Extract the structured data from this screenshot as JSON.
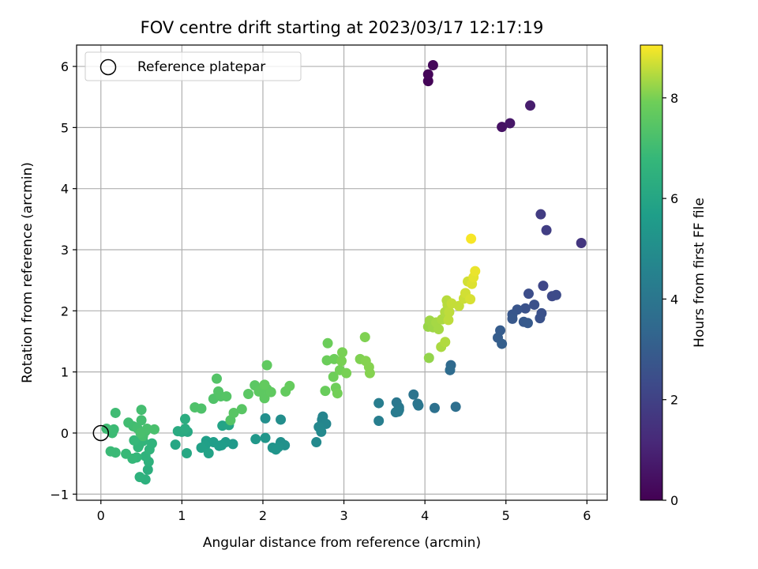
{
  "chart_data": {
    "type": "scatter",
    "title": "FOV centre drift starting at 2023/03/17 12:17:19",
    "xlabel": "Angular distance from reference (arcmin)",
    "ylabel": "Rotation from reference (arcmin)",
    "xlim": [
      -0.3,
      6.25
    ],
    "ylim": [
      -1.1,
      6.35
    ],
    "xticks": [
      0,
      1,
      2,
      3,
      4,
      5,
      6
    ],
    "yticks": [
      -1,
      0,
      1,
      2,
      3,
      4,
      5,
      6
    ],
    "grid": true,
    "legend": {
      "placement": "upper-left",
      "entries": [
        "Reference platepar"
      ]
    },
    "reference_point": {
      "x": 0,
      "y": 0
    },
    "colorbar": {
      "label": "Hours from first FF file",
      "colormap": "viridis",
      "range": [
        0,
        9.05
      ],
      "ticks": [
        0,
        2,
        4,
        6,
        8
      ]
    },
    "points": [
      {
        "x": 4.04,
        "y": 5.76,
        "c": 0.1
      },
      {
        "x": 4.04,
        "y": 5.87,
        "c": 0.15
      },
      {
        "x": 4.1,
        "y": 6.02,
        "c": 0.2
      },
      {
        "x": 4.95,
        "y": 5.01,
        "c": 0.5
      },
      {
        "x": 5.05,
        "y": 5.07,
        "c": 0.6
      },
      {
        "x": 5.3,
        "y": 5.36,
        "c": 0.8
      },
      {
        "x": 5.93,
        "y": 3.11,
        "c": 1.6
      },
      {
        "x": 5.43,
        "y": 3.58,
        "c": 1.8
      },
      {
        "x": 5.5,
        "y": 3.32,
        "c": 1.9
      },
      {
        "x": 5.46,
        "y": 2.41,
        "c": 2.2
      },
      {
        "x": 5.57,
        "y": 2.24,
        "c": 2.3
      },
      {
        "x": 5.62,
        "y": 2.26,
        "c": 2.35
      },
      {
        "x": 5.28,
        "y": 2.28,
        "c": 2.4
      },
      {
        "x": 5.35,
        "y": 2.1,
        "c": 2.5
      },
      {
        "x": 5.44,
        "y": 1.96,
        "c": 2.55
      },
      {
        "x": 5.42,
        "y": 1.88,
        "c": 2.6
      },
      {
        "x": 5.24,
        "y": 2.04,
        "c": 2.6
      },
      {
        "x": 5.14,
        "y": 2.02,
        "c": 2.7
      },
      {
        "x": 5.08,
        "y": 1.94,
        "c": 2.75
      },
      {
        "x": 5.08,
        "y": 1.87,
        "c": 2.8
      },
      {
        "x": 5.22,
        "y": 1.82,
        "c": 2.85
      },
      {
        "x": 5.27,
        "y": 1.8,
        "c": 2.9
      },
      {
        "x": 4.93,
        "y": 1.68,
        "c": 2.95
      },
      {
        "x": 4.9,
        "y": 1.56,
        "c": 3.0
      },
      {
        "x": 4.95,
        "y": 1.46,
        "c": 3.05
      },
      {
        "x": 4.32,
        "y": 1.11,
        "c": 3.5
      },
      {
        "x": 4.31,
        "y": 1.03,
        "c": 3.55
      },
      {
        "x": 4.38,
        "y": 0.43,
        "c": 3.7
      },
      {
        "x": 4.12,
        "y": 0.41,
        "c": 3.8
      },
      {
        "x": 3.86,
        "y": 0.63,
        "c": 3.9
      },
      {
        "x": 3.91,
        "y": 0.48,
        "c": 3.95
      },
      {
        "x": 3.92,
        "y": 0.45,
        "c": 4.0
      },
      {
        "x": 3.65,
        "y": 0.5,
        "c": 4.05
      },
      {
        "x": 3.68,
        "y": 0.42,
        "c": 4.1
      },
      {
        "x": 3.68,
        "y": 0.38,
        "c": 4.15
      },
      {
        "x": 3.64,
        "y": 0.34,
        "c": 4.2
      },
      {
        "x": 3.67,
        "y": 0.35,
        "c": 4.2
      },
      {
        "x": 3.43,
        "y": 0.49,
        "c": 4.3
      },
      {
        "x": 3.43,
        "y": 0.2,
        "c": 4.35
      },
      {
        "x": 2.74,
        "y": 0.27,
        "c": 4.6
      },
      {
        "x": 2.73,
        "y": 0.22,
        "c": 4.65
      },
      {
        "x": 2.78,
        "y": 0.15,
        "c": 4.7
      },
      {
        "x": 2.69,
        "y": 0.1,
        "c": 4.75
      },
      {
        "x": 2.72,
        "y": 0.02,
        "c": 4.8
      },
      {
        "x": 2.66,
        "y": -0.15,
        "c": 4.85
      },
      {
        "x": 2.22,
        "y": 0.22,
        "c": 5.0
      },
      {
        "x": 2.03,
        "y": 0.24,
        "c": 5.05
      },
      {
        "x": 2.22,
        "y": -0.15,
        "c": 5.1
      },
      {
        "x": 2.27,
        "y": -0.2,
        "c": 5.15
      },
      {
        "x": 2.19,
        "y": -0.23,
        "c": 5.2
      },
      {
        "x": 2.12,
        "y": -0.24,
        "c": 5.25
      },
      {
        "x": 2.16,
        "y": -0.27,
        "c": 5.3
      },
      {
        "x": 2.03,
        "y": -0.08,
        "c": 5.35
      },
      {
        "x": 1.91,
        "y": -0.1,
        "c": 5.4
      },
      {
        "x": 1.63,
        "y": -0.18,
        "c": 5.5
      },
      {
        "x": 1.54,
        "y": -0.15,
        "c": 5.55
      },
      {
        "x": 1.49,
        "y": -0.2,
        "c": 5.6
      },
      {
        "x": 1.46,
        "y": -0.21,
        "c": 5.6
      },
      {
        "x": 1.39,
        "y": -0.15,
        "c": 5.65
      },
      {
        "x": 1.3,
        "y": -0.13,
        "c": 5.7
      },
      {
        "x": 1.29,
        "y": -0.2,
        "c": 5.75
      },
      {
        "x": 1.24,
        "y": -0.24,
        "c": 5.8
      },
      {
        "x": 1.33,
        "y": -0.33,
        "c": 5.85
      },
      {
        "x": 1.5,
        "y": 0.12,
        "c": 5.9
      },
      {
        "x": 1.58,
        "y": 0.13,
        "c": 5.95
      },
      {
        "x": 0.92,
        "y": -0.19,
        "c": 6.0
      },
      {
        "x": 1.06,
        "y": -0.33,
        "c": 6.05
      },
      {
        "x": 1.07,
        "y": 0.02,
        "c": 6.1
      },
      {
        "x": 1.0,
        "y": 0.02,
        "c": 6.15
      },
      {
        "x": 0.95,
        "y": 0.03,
        "c": 6.2
      },
      {
        "x": 1.04,
        "y": 0.07,
        "c": 6.25
      },
      {
        "x": 1.04,
        "y": 0.23,
        "c": 6.3
      },
      {
        "x": 0.58,
        "y": -0.6,
        "c": 6.4
      },
      {
        "x": 0.55,
        "y": -0.76,
        "c": 6.45
      },
      {
        "x": 0.48,
        "y": -0.72,
        "c": 6.5
      },
      {
        "x": 0.59,
        "y": -0.47,
        "c": 6.5
      },
      {
        "x": 0.55,
        "y": -0.38,
        "c": 6.55
      },
      {
        "x": 0.63,
        "y": -0.17,
        "c": 6.6
      },
      {
        "x": 0.6,
        "y": -0.27,
        "c": 6.6
      },
      {
        "x": 0.52,
        "y": -0.13,
        "c": 6.65
      },
      {
        "x": 0.46,
        "y": -0.23,
        "c": 6.7
      },
      {
        "x": 0.47,
        "y": -0.2,
        "c": 6.7
      },
      {
        "x": 0.44,
        "y": -0.4,
        "c": 6.75
      },
      {
        "x": 0.39,
        "y": -0.42,
        "c": 6.8
      },
      {
        "x": 0.41,
        "y": -0.12,
        "c": 6.8
      },
      {
        "x": 0.31,
        "y": -0.34,
        "c": 6.85
      },
      {
        "x": 0.18,
        "y": -0.32,
        "c": 6.9
      },
      {
        "x": 0.12,
        "y": -0.3,
        "c": 6.9
      },
      {
        "x": 0.16,
        "y": 0.06,
        "c": 6.95
      },
      {
        "x": 0.14,
        "y": 0.0,
        "c": 6.95
      },
      {
        "x": 0.07,
        "y": 0.07,
        "c": 7.0
      },
      {
        "x": 0.18,
        "y": 0.33,
        "c": 7.0
      },
      {
        "x": 0.34,
        "y": 0.17,
        "c": 7.05
      },
      {
        "x": 0.4,
        "y": 0.11,
        "c": 7.05
      },
      {
        "x": 0.45,
        "y": 0.08,
        "c": 7.1
      },
      {
        "x": 0.5,
        "y": 0.21,
        "c": 7.1
      },
      {
        "x": 0.5,
        "y": 0.38,
        "c": 7.1
      },
      {
        "x": 0.55,
        "y": 0.03,
        "c": 7.15
      },
      {
        "x": 0.52,
        "y": -0.05,
        "c": 7.15
      },
      {
        "x": 0.57,
        "y": 0.07,
        "c": 7.2
      },
      {
        "x": 0.66,
        "y": 0.06,
        "c": 7.2
      },
      {
        "x": 0.49,
        "y": 0.0,
        "c": 7.2
      },
      {
        "x": 1.16,
        "y": 0.42,
        "c": 7.3
      },
      {
        "x": 1.24,
        "y": 0.4,
        "c": 7.3
      },
      {
        "x": 1.39,
        "y": 0.56,
        "c": 7.35
      },
      {
        "x": 1.43,
        "y": 0.89,
        "c": 7.4
      },
      {
        "x": 1.45,
        "y": 0.68,
        "c": 7.4
      },
      {
        "x": 1.48,
        "y": 0.6,
        "c": 7.4
      },
      {
        "x": 1.55,
        "y": 0.6,
        "c": 7.45
      },
      {
        "x": 1.6,
        "y": 0.21,
        "c": 7.45
      },
      {
        "x": 1.64,
        "y": 0.33,
        "c": 7.5
      },
      {
        "x": 1.74,
        "y": 0.39,
        "c": 7.5
      },
      {
        "x": 1.82,
        "y": 0.64,
        "c": 7.55
      },
      {
        "x": 1.9,
        "y": 0.78,
        "c": 7.55
      },
      {
        "x": 1.95,
        "y": 0.68,
        "c": 7.6
      },
      {
        "x": 2.02,
        "y": 0.57,
        "c": 7.6
      },
      {
        "x": 2.05,
        "y": 0.72,
        "c": 7.6
      },
      {
        "x": 2.1,
        "y": 0.67,
        "c": 7.65
      },
      {
        "x": 2.05,
        "y": 1.11,
        "c": 7.65
      },
      {
        "x": 2.02,
        "y": 0.79,
        "c": 7.7
      },
      {
        "x": 2.28,
        "y": 0.68,
        "c": 7.7
      },
      {
        "x": 2.33,
        "y": 0.77,
        "c": 7.75
      },
      {
        "x": 2.77,
        "y": 0.69,
        "c": 7.8
      },
      {
        "x": 2.79,
        "y": 1.19,
        "c": 7.85
      },
      {
        "x": 2.8,
        "y": 1.47,
        "c": 7.85
      },
      {
        "x": 2.88,
        "y": 1.21,
        "c": 7.9
      },
      {
        "x": 2.87,
        "y": 0.92,
        "c": 7.9
      },
      {
        "x": 2.9,
        "y": 0.74,
        "c": 7.9
      },
      {
        "x": 2.92,
        "y": 0.65,
        "c": 7.95
      },
      {
        "x": 2.95,
        "y": 1.03,
        "c": 7.95
      },
      {
        "x": 2.97,
        "y": 1.18,
        "c": 8.0
      },
      {
        "x": 2.98,
        "y": 1.32,
        "c": 8.0
      },
      {
        "x": 3.03,
        "y": 0.98,
        "c": 8.0
      },
      {
        "x": 3.2,
        "y": 1.21,
        "c": 8.05
      },
      {
        "x": 3.26,
        "y": 1.57,
        "c": 8.05
      },
      {
        "x": 3.27,
        "y": 1.18,
        "c": 8.1
      },
      {
        "x": 3.31,
        "y": 1.08,
        "c": 8.1
      },
      {
        "x": 3.32,
        "y": 0.98,
        "c": 8.1
      },
      {
        "x": 4.05,
        "y": 1.23,
        "c": 8.2
      },
      {
        "x": 4.04,
        "y": 1.74,
        "c": 8.25
      },
      {
        "x": 4.06,
        "y": 1.84,
        "c": 8.3
      },
      {
        "x": 4.1,
        "y": 1.73,
        "c": 8.3
      },
      {
        "x": 4.14,
        "y": 1.81,
        "c": 8.35
      },
      {
        "x": 4.17,
        "y": 1.7,
        "c": 8.35
      },
      {
        "x": 4.21,
        "y": 1.86,
        "c": 8.4
      },
      {
        "x": 4.2,
        "y": 1.41,
        "c": 8.4
      },
      {
        "x": 4.25,
        "y": 1.49,
        "c": 8.45
      },
      {
        "x": 4.25,
        "y": 1.98,
        "c": 8.45
      },
      {
        "x": 4.28,
        "y": 2.1,
        "c": 8.5
      },
      {
        "x": 4.27,
        "y": 2.17,
        "c": 8.5
      },
      {
        "x": 4.3,
        "y": 1.98,
        "c": 8.55
      },
      {
        "x": 4.29,
        "y": 1.85,
        "c": 8.55
      },
      {
        "x": 4.33,
        "y": 2.12,
        "c": 8.6
      },
      {
        "x": 4.42,
        "y": 2.08,
        "c": 8.6
      },
      {
        "x": 4.48,
        "y": 2.2,
        "c": 8.65
      },
      {
        "x": 4.5,
        "y": 2.29,
        "c": 8.7
      },
      {
        "x": 4.53,
        "y": 2.48,
        "c": 8.7
      },
      {
        "x": 4.56,
        "y": 2.19,
        "c": 8.75
      },
      {
        "x": 4.58,
        "y": 2.44,
        "c": 8.8
      },
      {
        "x": 4.6,
        "y": 2.55,
        "c": 8.85
      },
      {
        "x": 4.62,
        "y": 2.65,
        "c": 8.9
      },
      {
        "x": 4.57,
        "y": 3.18,
        "c": 9.0
      }
    ]
  }
}
